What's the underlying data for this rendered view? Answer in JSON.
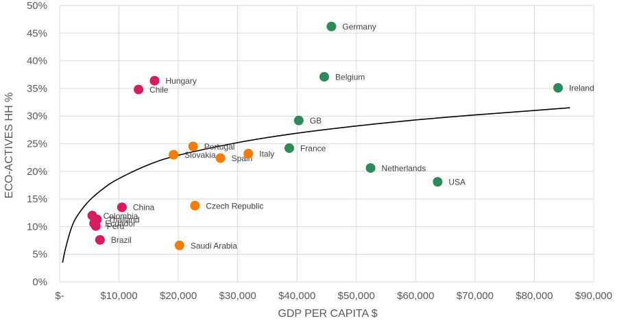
{
  "chart_data": {
    "type": "scatter",
    "xlabel": "GDP PER CAPITA $",
    "ylabel": "ECO-ACTIVES HH %",
    "xlim": [
      0,
      90000
    ],
    "ylim": [
      0,
      50
    ],
    "grid": true,
    "x_tick_values": [
      0,
      10000,
      20000,
      30000,
      40000,
      50000,
      60000,
      70000,
      80000,
      90000
    ],
    "x_tick_labels": [
      "$-",
      "$10,000",
      "$20,000",
      "$30,000",
      "$40,000",
      "$50,000",
      "$60,000",
      "$70,000",
      "$80,000",
      "$90,000"
    ],
    "y_tick_values": [
      0,
      5,
      10,
      15,
      20,
      25,
      30,
      35,
      40,
      45,
      50
    ],
    "y_tick_labels": [
      "0%",
      "5%",
      "10%",
      "15%",
      "20%",
      "25%",
      "30%",
      "35%",
      "40%",
      "45%",
      "50%"
    ],
    "colors": {
      "magenta": "#d81b60",
      "orange": "#f57c00",
      "green": "#2e8b57",
      "trend": "#000000",
      "grid": "#d9d9d9"
    },
    "points": [
      {
        "label": "Germany",
        "x": 45800,
        "y": 46.2,
        "color": "green"
      },
      {
        "label": "Belgium",
        "x": 44600,
        "y": 37.1,
        "color": "green"
      },
      {
        "label": "Ireland",
        "x": 84000,
        "y": 35.1,
        "color": "green"
      },
      {
        "label": "GB",
        "x": 40300,
        "y": 29.2,
        "color": "green"
      },
      {
        "label": "France",
        "x": 38700,
        "y": 24.2,
        "color": "green"
      },
      {
        "label": "Netherlands",
        "x": 52400,
        "y": 20.6,
        "color": "green"
      },
      {
        "label": "USA",
        "x": 63700,
        "y": 18.1,
        "color": "green"
      },
      {
        "label": "Portugal",
        "x": 22500,
        "y": 24.5,
        "color": "orange"
      },
      {
        "label": "Slovakia",
        "x": 19200,
        "y": 23.0,
        "color": "orange"
      },
      {
        "label": "Spain",
        "x": 27100,
        "y": 22.4,
        "color": "orange"
      },
      {
        "label": "Italy",
        "x": 31800,
        "y": 23.2,
        "color": "orange"
      },
      {
        "label": "Czech Republic",
        "x": 22800,
        "y": 13.8,
        "color": "orange"
      },
      {
        "label": "Saudi Arabia",
        "x": 20200,
        "y": 6.6,
        "color": "orange"
      },
      {
        "label": "Hungary",
        "x": 16000,
        "y": 36.4,
        "color": "magenta"
      },
      {
        "label": "Chile",
        "x": 13300,
        "y": 34.8,
        "color": "magenta"
      },
      {
        "label": "China",
        "x": 10500,
        "y": 13.5,
        "color": "magenta"
      },
      {
        "label": "Colombia",
        "x": 5500,
        "y": 12.0,
        "color": "magenta"
      },
      {
        "label": "Thailand",
        "x": 6300,
        "y": 11.3,
        "color": "magenta"
      },
      {
        "label": "Ecuador",
        "x": 5800,
        "y": 10.6,
        "color": "magenta"
      },
      {
        "label": "Peru",
        "x": 6100,
        "y": 10.1,
        "color": "magenta"
      },
      {
        "label": "Brazil",
        "x": 6800,
        "y": 7.6,
        "color": "magenta"
      }
    ],
    "trendline": {
      "type": "log",
      "x": [
        500,
        1000,
        2000,
        3000,
        5000,
        7500,
        10000,
        15000,
        20000,
        30000,
        40000,
        50000,
        60000,
        70000,
        80000,
        86000
      ],
      "y": [
        3.5,
        6.1,
        9.8,
        12.0,
        14.7,
        17.0,
        18.7,
        21.2,
        22.9,
        25.2,
        26.9,
        28.2,
        29.3,
        30.2,
        31.0,
        31.5
      ]
    }
  }
}
